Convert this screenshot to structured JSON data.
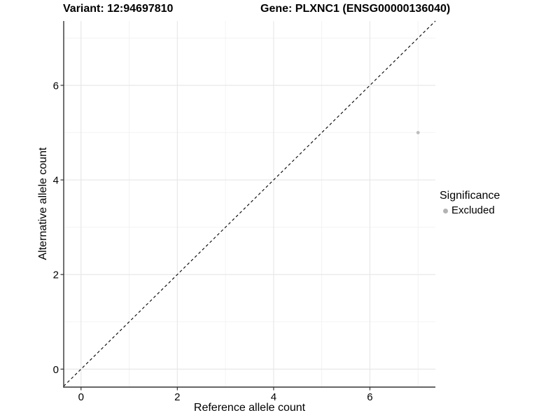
{
  "titles": {
    "left": "Variant: 12:94697810",
    "right": "Gene: PLXNC1 (ENSG00000136040)"
  },
  "chart_data": {
    "type": "scatter",
    "title_left": "Variant: 12:94697810",
    "title_right": "Gene: PLXNC1 (ENSG00000136040)",
    "xlabel": "Reference allele count",
    "ylabel": "Alternative allele count",
    "xlim": [
      -0.36,
      7.36
    ],
    "ylim": [
      -0.38,
      7.36
    ],
    "x_major_ticks": [
      0,
      2,
      4,
      6
    ],
    "y_major_ticks": [
      0,
      2,
      4,
      6
    ],
    "x_minor_gridlines": [
      1,
      3,
      5,
      7
    ],
    "y_minor_gridlines": [
      1,
      3,
      5,
      7
    ],
    "grid": true,
    "points": [
      {
        "x": 7,
        "y": 5,
        "significance": "Excluded"
      }
    ],
    "identity_line": {
      "slope": 1,
      "intercept": 0,
      "style": "dashed",
      "color": "#000000"
    },
    "legend": {
      "title": "Significance",
      "position": "right",
      "items": [
        {
          "label": "Excluded",
          "color": "#b3b3b3"
        }
      ]
    },
    "colors": {
      "point": "#bdbdbd",
      "major_grid": "#e6e6e6",
      "minor_grid": "#f0f0f0",
      "axis_line": "#333333",
      "tick_text": "#000000"
    }
  }
}
